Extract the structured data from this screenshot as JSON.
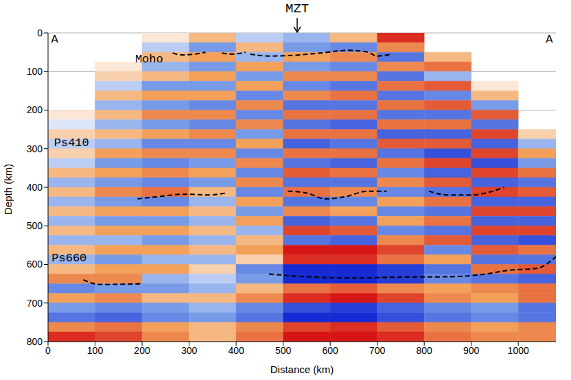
{
  "chart_data": {
    "type": "heatmap",
    "x_label": "Distance (km)",
    "y_label": "Depth (km)",
    "xlim": [
      0,
      1080
    ],
    "xticks": [
      0,
      100,
      200,
      300,
      400,
      500,
      600,
      700,
      800,
      900,
      1000
    ],
    "ylim": [
      0,
      800
    ],
    "yticks": [
      0,
      100,
      200,
      300,
      400,
      500,
      600,
      700,
      800
    ],
    "grid": true,
    "heatmap": {
      "x_edges": [
        0,
        100,
        200,
        300,
        400,
        500,
        600,
        700,
        800,
        900,
        1000,
        1080
      ],
      "y_edges": [
        0,
        25,
        50,
        75,
        100,
        125,
        150,
        175,
        200,
        225,
        250,
        275,
        300,
        325,
        350,
        375,
        400,
        425,
        450,
        475,
        500,
        525,
        550,
        575,
        600,
        625,
        650,
        675,
        700,
        725,
        750,
        775,
        800
      ],
      "cells": [
        [
          0,
          0,
          0.1,
          0.3,
          -0.2,
          -0.3,
          0.3,
          0.9,
          0,
          0,
          0
        ],
        [
          0,
          0,
          -0.2,
          -0.4,
          0.3,
          -0.4,
          -0.5,
          0.5,
          0,
          0,
          0
        ],
        [
          0,
          0,
          0.3,
          0.4,
          -0.3,
          0.4,
          0.5,
          -0.6,
          0.3,
          0,
          0
        ],
        [
          0,
          0.1,
          -0.3,
          -0.4,
          0.4,
          -0.4,
          -0.5,
          0.5,
          0.6,
          0,
          0
        ],
        [
          0,
          0.2,
          0.3,
          0.4,
          -0.4,
          0.5,
          0.5,
          -0.6,
          -0.3,
          0,
          0
        ],
        [
          0,
          -0.2,
          -0.4,
          -0.4,
          0.4,
          -0.5,
          -0.6,
          0.6,
          0.7,
          0.1,
          0
        ],
        [
          0,
          0.3,
          0.4,
          0.4,
          -0.5,
          0.5,
          0.6,
          -0.6,
          -0.5,
          0.3,
          0
        ],
        [
          0,
          -0.3,
          -0.4,
          -0.5,
          0.5,
          -0.6,
          -0.6,
          0.6,
          0.7,
          -0.4,
          0
        ],
        [
          0.1,
          0.3,
          0.5,
          0.5,
          -0.5,
          0.6,
          0.6,
          -0.6,
          -0.6,
          0.7,
          0
        ],
        [
          -0.1,
          -0.3,
          -0.4,
          -0.5,
          0.5,
          -0.6,
          -0.7,
          0.6,
          0.6,
          -0.6,
          0
        ],
        [
          0.2,
          0.3,
          0.4,
          0.5,
          -0.4,
          0.6,
          0.6,
          -0.7,
          -0.7,
          0.8,
          0.2
        ],
        [
          -0.2,
          -0.3,
          -0.5,
          -0.5,
          0.4,
          -0.7,
          -0.6,
          0.7,
          0.7,
          -0.7,
          -0.3
        ],
        [
          0.2,
          0.4,
          0.5,
          0.5,
          -0.5,
          0.6,
          0.6,
          -0.6,
          -0.8,
          0.8,
          0.4
        ],
        [
          -0.2,
          -0.4,
          -0.5,
          -0.4,
          0.5,
          -0.6,
          -0.7,
          0.6,
          0.8,
          -0.8,
          -0.4
        ],
        [
          0.3,
          0.4,
          0.5,
          0.4,
          -0.5,
          0.7,
          0.6,
          -0.5,
          -0.7,
          0.8,
          0.6
        ],
        [
          -0.3,
          -0.4,
          -0.5,
          -0.4,
          0.5,
          -0.6,
          -0.6,
          0.5,
          0.7,
          -0.7,
          -0.6
        ],
        [
          0.3,
          0.5,
          0.6,
          0.3,
          -0.5,
          0.6,
          0.5,
          -0.5,
          -0.6,
          0.8,
          0.7
        ],
        [
          -0.3,
          -0.4,
          -0.5,
          -0.3,
          0.4,
          -0.6,
          -0.5,
          0.4,
          0.6,
          -0.7,
          -0.7
        ],
        [
          0.3,
          0.4,
          0.4,
          0.3,
          -0.4,
          0.5,
          0.4,
          -0.5,
          -0.6,
          0.8,
          0.8
        ],
        [
          -0.3,
          -0.4,
          -0.4,
          -0.3,
          0.4,
          -0.7,
          -0.6,
          0.4,
          0.6,
          -0.7,
          -0.7
        ],
        [
          0.3,
          0.4,
          0.4,
          0.3,
          -0.3,
          0.8,
          0.7,
          -0.5,
          -0.6,
          0.8,
          0.8
        ],
        [
          -0.3,
          -0.3,
          -0.4,
          -0.3,
          0.3,
          -0.6,
          -0.7,
          0.5,
          0.7,
          -0.7,
          -0.8
        ],
        [
          0.3,
          0.4,
          0.4,
          0.3,
          0.4,
          1.0,
          1.0,
          0.8,
          -0.5,
          0.7,
          0.6
        ],
        [
          -0.3,
          -0.4,
          -0.3,
          -0.3,
          0.2,
          0.9,
          0.9,
          0.6,
          0.4,
          -0.6,
          -0.6
        ],
        [
          0.3,
          0.4,
          0.4,
          0.2,
          -0.5,
          -1.0,
          -1.0,
          -0.9,
          -0.6,
          0.6,
          0.7
        ],
        [
          0.5,
          0.5,
          -0.3,
          -0.2,
          -0.4,
          -1.0,
          -1.0,
          -0.9,
          -0.5,
          -0.6,
          -0.7
        ],
        [
          -0.5,
          -0.4,
          -0.4,
          -0.3,
          0.3,
          0.6,
          0.7,
          0.5,
          0.4,
          0.5,
          0.6
        ],
        [
          0.4,
          0.5,
          0.3,
          0.3,
          0.5,
          0.9,
          1.0,
          0.8,
          0.5,
          0.4,
          0.6
        ],
        [
          -0.4,
          -0.5,
          -0.4,
          -0.3,
          -0.5,
          -0.8,
          -0.9,
          -0.7,
          -0.5,
          -0.4,
          -0.6
        ],
        [
          -0.6,
          -0.7,
          -0.5,
          -0.4,
          -0.6,
          -1.0,
          -1.0,
          -0.8,
          -0.6,
          -0.5,
          -0.6
        ],
        [
          0.5,
          0.6,
          0.4,
          0.3,
          0.5,
          0.8,
          0.9,
          0.7,
          0.5,
          0.4,
          0.5
        ],
        [
          0.9,
          0.8,
          0.5,
          0.3,
          0.6,
          1.0,
          1.0,
          0.9,
          0.6,
          0.5,
          0.5
        ]
      ]
    },
    "interfaces": [
      {
        "label": "Moho",
        "label_x": 215,
        "label_y": 65,
        "color": "#000000",
        "line_style": "dashed",
        "segments": [
          [
            [
              265,
              52
            ],
            [
              285,
              57
            ],
            [
              310,
              55
            ],
            [
              335,
              50
            ]
          ],
          [
            [
              370,
              52
            ],
            [
              390,
              55
            ],
            [
              420,
              50
            ]
          ],
          [
            [
              430,
              55
            ],
            [
              470,
              60
            ],
            [
              520,
              58
            ],
            [
              580,
              52
            ],
            [
              640,
              45
            ],
            [
              680,
              50
            ],
            [
              700,
              60
            ],
            [
              730,
              55
            ]
          ]
        ]
      },
      {
        "label": "Ps410",
        "label_x": 50,
        "label_y": 282,
        "color": "#000000",
        "line_style": "dashed",
        "segments": [
          [
            [
              190,
              430
            ],
            [
              230,
              425
            ],
            [
              290,
              418
            ],
            [
              340,
              420
            ],
            [
              380,
              415
            ]
          ],
          [
            [
              510,
              410
            ],
            [
              550,
              415
            ],
            [
              590,
              430
            ],
            [
              630,
              425
            ],
            [
              680,
              410
            ],
            [
              720,
              410
            ]
          ],
          [
            [
              810,
              410
            ],
            [
              850,
              420
            ],
            [
              900,
              420
            ],
            [
              940,
              412
            ],
            [
              970,
              400
            ]
          ]
        ]
      },
      {
        "label": "Ps660",
        "label_x": 45,
        "label_y": 582,
        "color": "#000000",
        "line_style": "dashed",
        "segments": [
          [
            [
              75,
              640
            ],
            [
              110,
              652
            ],
            [
              200,
              650
            ]
          ],
          [
            [
              470,
              625
            ],
            [
              550,
              632
            ],
            [
              650,
              635
            ],
            [
              750,
              633
            ],
            [
              850,
              632
            ],
            [
              930,
              625
            ],
            [
              980,
              615
            ],
            [
              1040,
              610
            ],
            [
              1080,
              580
            ]
          ]
        ]
      }
    ],
    "annotations": [
      {
        "text": "MZT",
        "x": 530,
        "y": 0,
        "arrow": true
      },
      {
        "text": "A",
        "x": 14,
        "y": 14
      },
      {
        "text": "A",
        "x": 1066,
        "y": 14
      }
    ]
  }
}
